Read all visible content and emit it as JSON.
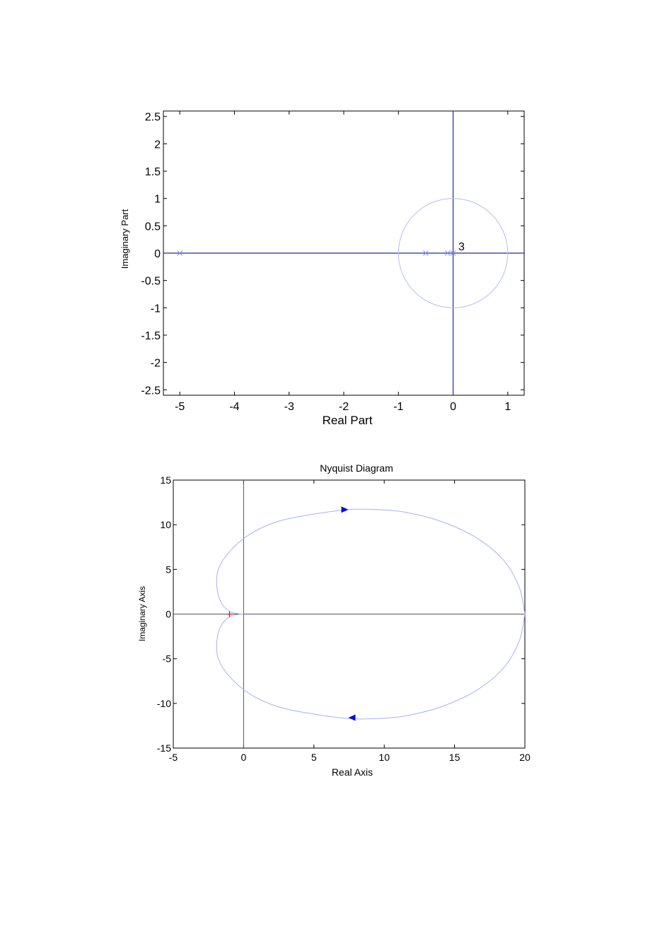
{
  "chart_data": [
    {
      "type": "scatter",
      "title": "",
      "xlabel": "Real Part",
      "ylabel": "Imaginary Part",
      "xlim": [
        -5.3,
        1.3
      ],
      "ylim": [
        -2.6,
        2.6
      ],
      "xticks": [
        -5,
        -4,
        -3,
        -2,
        -1,
        0,
        1
      ],
      "yticks": [
        2.5,
        2,
        1.5,
        1,
        0.5,
        0,
        -0.5,
        -1,
        -1.5,
        -2,
        -2.5
      ],
      "grid": false,
      "poles": [
        {
          "x": -5,
          "y": 0
        },
        {
          "x": -0.5,
          "y": 0
        },
        {
          "x": -0.1,
          "y": 0
        },
        {
          "x": 0,
          "y": 0
        }
      ],
      "pole_multiplicity_label": {
        "x": 0,
        "y": 0,
        "text": "3"
      },
      "unit_circle": {
        "center": [
          0,
          0
        ],
        "radius": 1
      },
      "colors": {
        "poles": "#8a93f0",
        "circle": "#b9bdf2",
        "axes": "#1f2aa6"
      }
    },
    {
      "type": "line",
      "title": "Nyquist Diagram",
      "xlabel": "Real Axis",
      "ylabel": "Imaginary Axis",
      "xlim": [
        -5,
        20
      ],
      "ylim": [
        -15,
        15
      ],
      "xticks": [
        -5,
        0,
        5,
        10,
        15,
        20
      ],
      "yticks": [
        15,
        10,
        5,
        0,
        -5,
        -10,
        -15
      ],
      "grid": false,
      "critical_point": {
        "x": -1,
        "y": 0
      },
      "series": [
        {
          "values_upper": [
            [
              20,
              0
            ],
            [
              19.6,
              3
            ],
            [
              18.5,
              6
            ],
            [
              16.5,
              8.6
            ],
            [
              14,
              10.4
            ],
            [
              11.5,
              11.4
            ],
            [
              9.5,
              11.7
            ],
            [
              7.5,
              11.7
            ],
            [
              5,
              11.2
            ],
            [
              2.5,
              10.4
            ],
            [
              0.5,
              9
            ],
            [
              -1,
              7
            ],
            [
              -1.8,
              5
            ],
            [
              -1.9,
              3
            ],
            [
              -1.6,
              1.3
            ],
            [
              -1,
              0.3
            ],
            [
              -0.4,
              0.06
            ],
            [
              0,
              0
            ]
          ],
          "values_lower": [
            [
              20,
              0
            ],
            [
              19.6,
              -3
            ],
            [
              18.5,
              -6
            ],
            [
              16.5,
              -8.6
            ],
            [
              14,
              -10.4
            ],
            [
              11.5,
              -11.4
            ],
            [
              9.5,
              -11.7
            ],
            [
              7.5,
              -11.7
            ],
            [
              5,
              -11.2
            ],
            [
              2.5,
              -10.4
            ],
            [
              0.5,
              -9
            ],
            [
              -1,
              -7
            ],
            [
              -1.8,
              -5
            ],
            [
              -1.9,
              -3
            ],
            [
              -1.6,
              -1.3
            ],
            [
              -1,
              -0.3
            ],
            [
              -0.4,
              -0.06
            ],
            [
              0,
              0
            ]
          ],
          "arrows": [
            {
              "x": 7.2,
              "y": 11.7,
              "direction": "right"
            },
            {
              "x": 7.7,
              "y": -11.6,
              "direction": "left"
            }
          ]
        }
      ],
      "colors": {
        "curve": "#aab0f3",
        "arrow": "#0010d0",
        "critical": "#ff0000",
        "axes": "#555555"
      }
    }
  ]
}
